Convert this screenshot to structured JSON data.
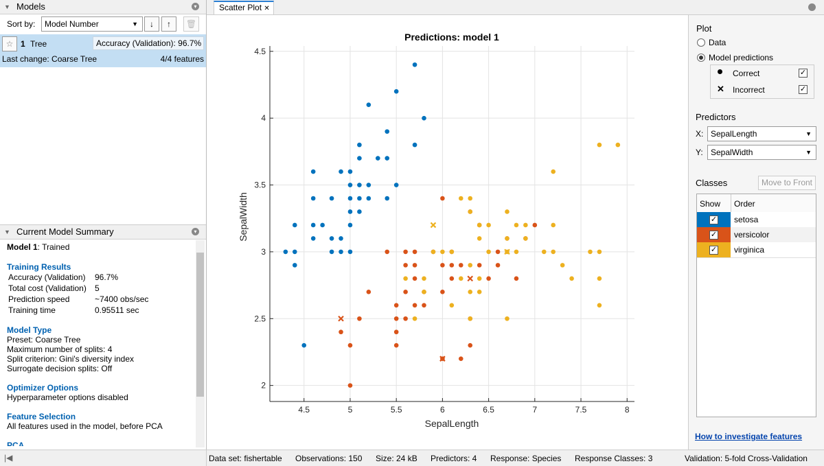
{
  "models_panel": {
    "title": "Models",
    "sort_label": "Sort by:",
    "sort_value": "Model Number",
    "model": {
      "number": "1",
      "name": "Tree",
      "accuracy": "Accuracy (Validation): 96.7%",
      "last_change": "Last change: Coarse Tree",
      "features": "4/4 features"
    }
  },
  "summary_panel": {
    "title": "Current Model Summary",
    "model_name": "Model 1",
    "model_status": ": Trained",
    "sections": [
      {
        "heading": "Training Results",
        "rows": [
          [
            "Accuracy (Validation)",
            "96.7%"
          ],
          [
            "Total cost (Validation)",
            "5"
          ],
          [
            "Prediction speed",
            "~7400 obs/sec"
          ],
          [
            "Training time",
            "0.95511 sec"
          ]
        ]
      },
      {
        "heading": "Model Type",
        "lines": [
          "Preset: Coarse Tree",
          "Maximum number of splits: 4",
          "Split criterion: Gini's diversity index",
          "Surrogate decision splits: Off"
        ]
      },
      {
        "heading": "Optimizer Options",
        "lines": [
          "Hyperparameter options disabled"
        ]
      },
      {
        "heading": "Feature Selection",
        "lines": [
          "All features used in the model, before PCA"
        ]
      },
      {
        "heading": "PCA",
        "lines": []
      }
    ]
  },
  "tab": "Scatter Plot",
  "chart_data": {
    "type": "scatter",
    "title": "Predictions: model 1",
    "x_label": "SepalLength",
    "y_label": "SepalWidth",
    "xlim": [
      4.13,
      8.08
    ],
    "ylim": [
      1.88,
      4.54
    ],
    "xticks": [
      4.5,
      5,
      5.5,
      6,
      6.5,
      7,
      7.5,
      8
    ],
    "yticks": [
      2,
      2.5,
      3,
      3.5,
      4,
      4.5
    ],
    "grid": true,
    "series": [
      {
        "name": "setosa",
        "color": "#0072bd",
        "x": [
          5.1,
          4.9,
          4.7,
          4.6,
          5.0,
          5.4,
          4.6,
          5.0,
          4.4,
          4.9,
          5.4,
          4.8,
          4.8,
          4.3,
          5.8,
          5.7,
          5.7,
          5.1,
          5.4,
          5.1,
          4.6,
          5.1,
          5.0,
          5.2,
          5.2,
          4.8,
          5.2,
          5.5,
          5.0,
          5.5,
          4.9,
          4.4,
          5.1,
          5.0,
          4.5,
          4.4,
          4.6,
          5.3,
          5.0
        ],
        "y": [
          3.5,
          3.0,
          3.2,
          3.1,
          3.6,
          3.9,
          3.4,
          3.4,
          2.9,
          3.1,
          3.7,
          3.4,
          3.0,
          3.0,
          4.0,
          4.4,
          3.8,
          3.8,
          3.4,
          3.7,
          3.6,
          3.3,
          3.0,
          3.5,
          3.4,
          3.1,
          4.1,
          4.2,
          3.2,
          3.5,
          3.6,
          3.0,
          3.4,
          3.5,
          2.3,
          3.2,
          3.2,
          3.7,
          3.3
        ]
      },
      {
        "name": "versicolor",
        "color": "#d95319",
        "x": [
          7.0,
          6.4,
          6.9,
          5.5,
          6.5,
          5.7,
          6.3,
          4.9,
          6.6,
          5.2,
          5.0,
          5.9,
          6.0,
          6.1,
          5.6,
          6.7,
          5.6,
          5.8,
          6.2,
          5.6,
          6.1,
          6.3,
          6.4,
          6.6,
          6.8,
          6.0,
          5.7,
          5.5,
          6.0,
          5.4,
          6.0,
          6.3,
          5.5,
          5.5,
          6.1,
          5.8,
          5.0,
          5.6,
          5.7,
          5.7,
          6.2,
          5.1
        ],
        "y": [
          3.2,
          3.2,
          3.1,
          2.3,
          2.8,
          2.8,
          3.3,
          2.4,
          2.9,
          2.7,
          2.0,
          3.0,
          2.2,
          2.9,
          2.9,
          3.1,
          3.0,
          2.7,
          2.2,
          2.5,
          2.8,
          2.5,
          2.9,
          3.0,
          2.8,
          2.9,
          2.6,
          2.4,
          2.7,
          3.0,
          3.4,
          2.3,
          2.5,
          2.6,
          3.0,
          2.6,
          2.3,
          2.7,
          3.0,
          2.9,
          2.9,
          2.5
        ],
        "incorrect": {
          "x": [
            4.9,
            6.3,
            6.0
          ],
          "y": [
            2.5,
            2.8,
            2.2
          ]
        }
      },
      {
        "name": "virginica",
        "color": "#edb120",
        "x": [
          6.3,
          5.8,
          7.1,
          6.3,
          6.5,
          7.6,
          7.3,
          6.7,
          7.2,
          6.5,
          6.4,
          6.8,
          5.7,
          5.8,
          6.4,
          7.7,
          7.7,
          6.9,
          5.6,
          7.7,
          6.3,
          6.7,
          7.2,
          6.2,
          6.1,
          6.4,
          7.2,
          7.4,
          7.9,
          6.1,
          7.7,
          6.3,
          6.4,
          6.0,
          6.9,
          6.7,
          6.8,
          6.7,
          6.3,
          6.2,
          5.9
        ],
        "y": [
          3.3,
          2.7,
          3.0,
          2.9,
          3.0,
          3.0,
          2.9,
          2.5,
          3.6,
          3.2,
          2.7,
          3.0,
          2.5,
          2.8,
          3.2,
          3.8,
          2.6,
          3.2,
          2.8,
          2.8,
          2.7,
          3.3,
          3.2,
          2.8,
          3.0,
          2.8,
          3.0,
          2.8,
          3.8,
          2.6,
          3.0,
          3.4,
          3.1,
          3.0,
          3.1,
          3.1,
          3.2,
          3.0,
          2.5,
          3.4,
          3.0
        ],
        "incorrect": {
          "x": [
            5.9,
            6.7
          ],
          "y": [
            3.2,
            3.0
          ]
        }
      }
    ]
  },
  "plot_panel": {
    "plot_heading": "Plot",
    "options": [
      "Data",
      "Model predictions"
    ],
    "selected": 1,
    "correct": "Correct",
    "incorrect": "Incorrect",
    "predictors_heading": "Predictors",
    "x_label": "X:",
    "x_value": "SepalLength",
    "y_label": "Y:",
    "y_value": "SepalWidth",
    "classes_heading": "Classes",
    "move_button": "Move to Front",
    "table_headers": [
      "Show",
      "Order"
    ],
    "help_link": "How to investigate features"
  },
  "status_bar": [
    "Data set: fishertable",
    "Observations: 150",
    "Size: 24 kB",
    "Predictors: 4",
    "Response: Species",
    "Response Classes: 3",
    "Validation: 5-fold Cross-Validation"
  ]
}
